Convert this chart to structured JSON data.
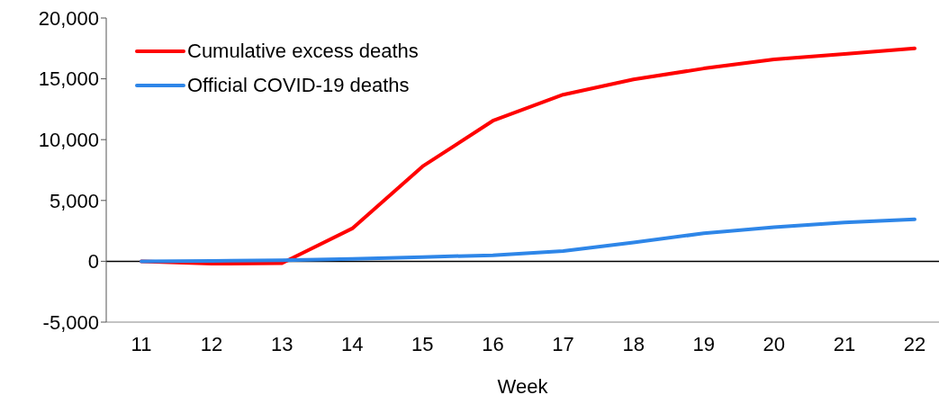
{
  "chart_data": {
    "type": "line",
    "xlabel": "Week",
    "categories": [
      "11",
      "12",
      "13",
      "14",
      "15",
      "16",
      "17",
      "18",
      "19",
      "20",
      "21",
      "22"
    ],
    "series": [
      {
        "name": "Cumulative excess deaths",
        "color": "#ff0000",
        "values": [
          0,
          -200,
          -150,
          2700,
          7800,
          11550,
          13700,
          14950,
          15850,
          16600,
          17050,
          17500
        ]
      },
      {
        "name": "Official COVID-19 deaths",
        "color": "#2e86e8",
        "values": [
          0,
          30,
          80,
          200,
          350,
          500,
          850,
          1550,
          2300,
          2800,
          3200,
          3450
        ]
      }
    ],
    "ylim": [
      -5000,
      20000
    ],
    "yticks": [
      {
        "value": -5000,
        "label": "-5,000"
      },
      0,
      {
        "value": 5000,
        "label": "5,000"
      },
      {
        "value": 10000,
        "label": "10,000"
      },
      {
        "value": 15000,
        "label": "15,000"
      },
      {
        "value": 20000,
        "label": "20,000"
      }
    ],
    "legend": "top left",
    "marker": "none",
    "line_style": "solid"
  }
}
